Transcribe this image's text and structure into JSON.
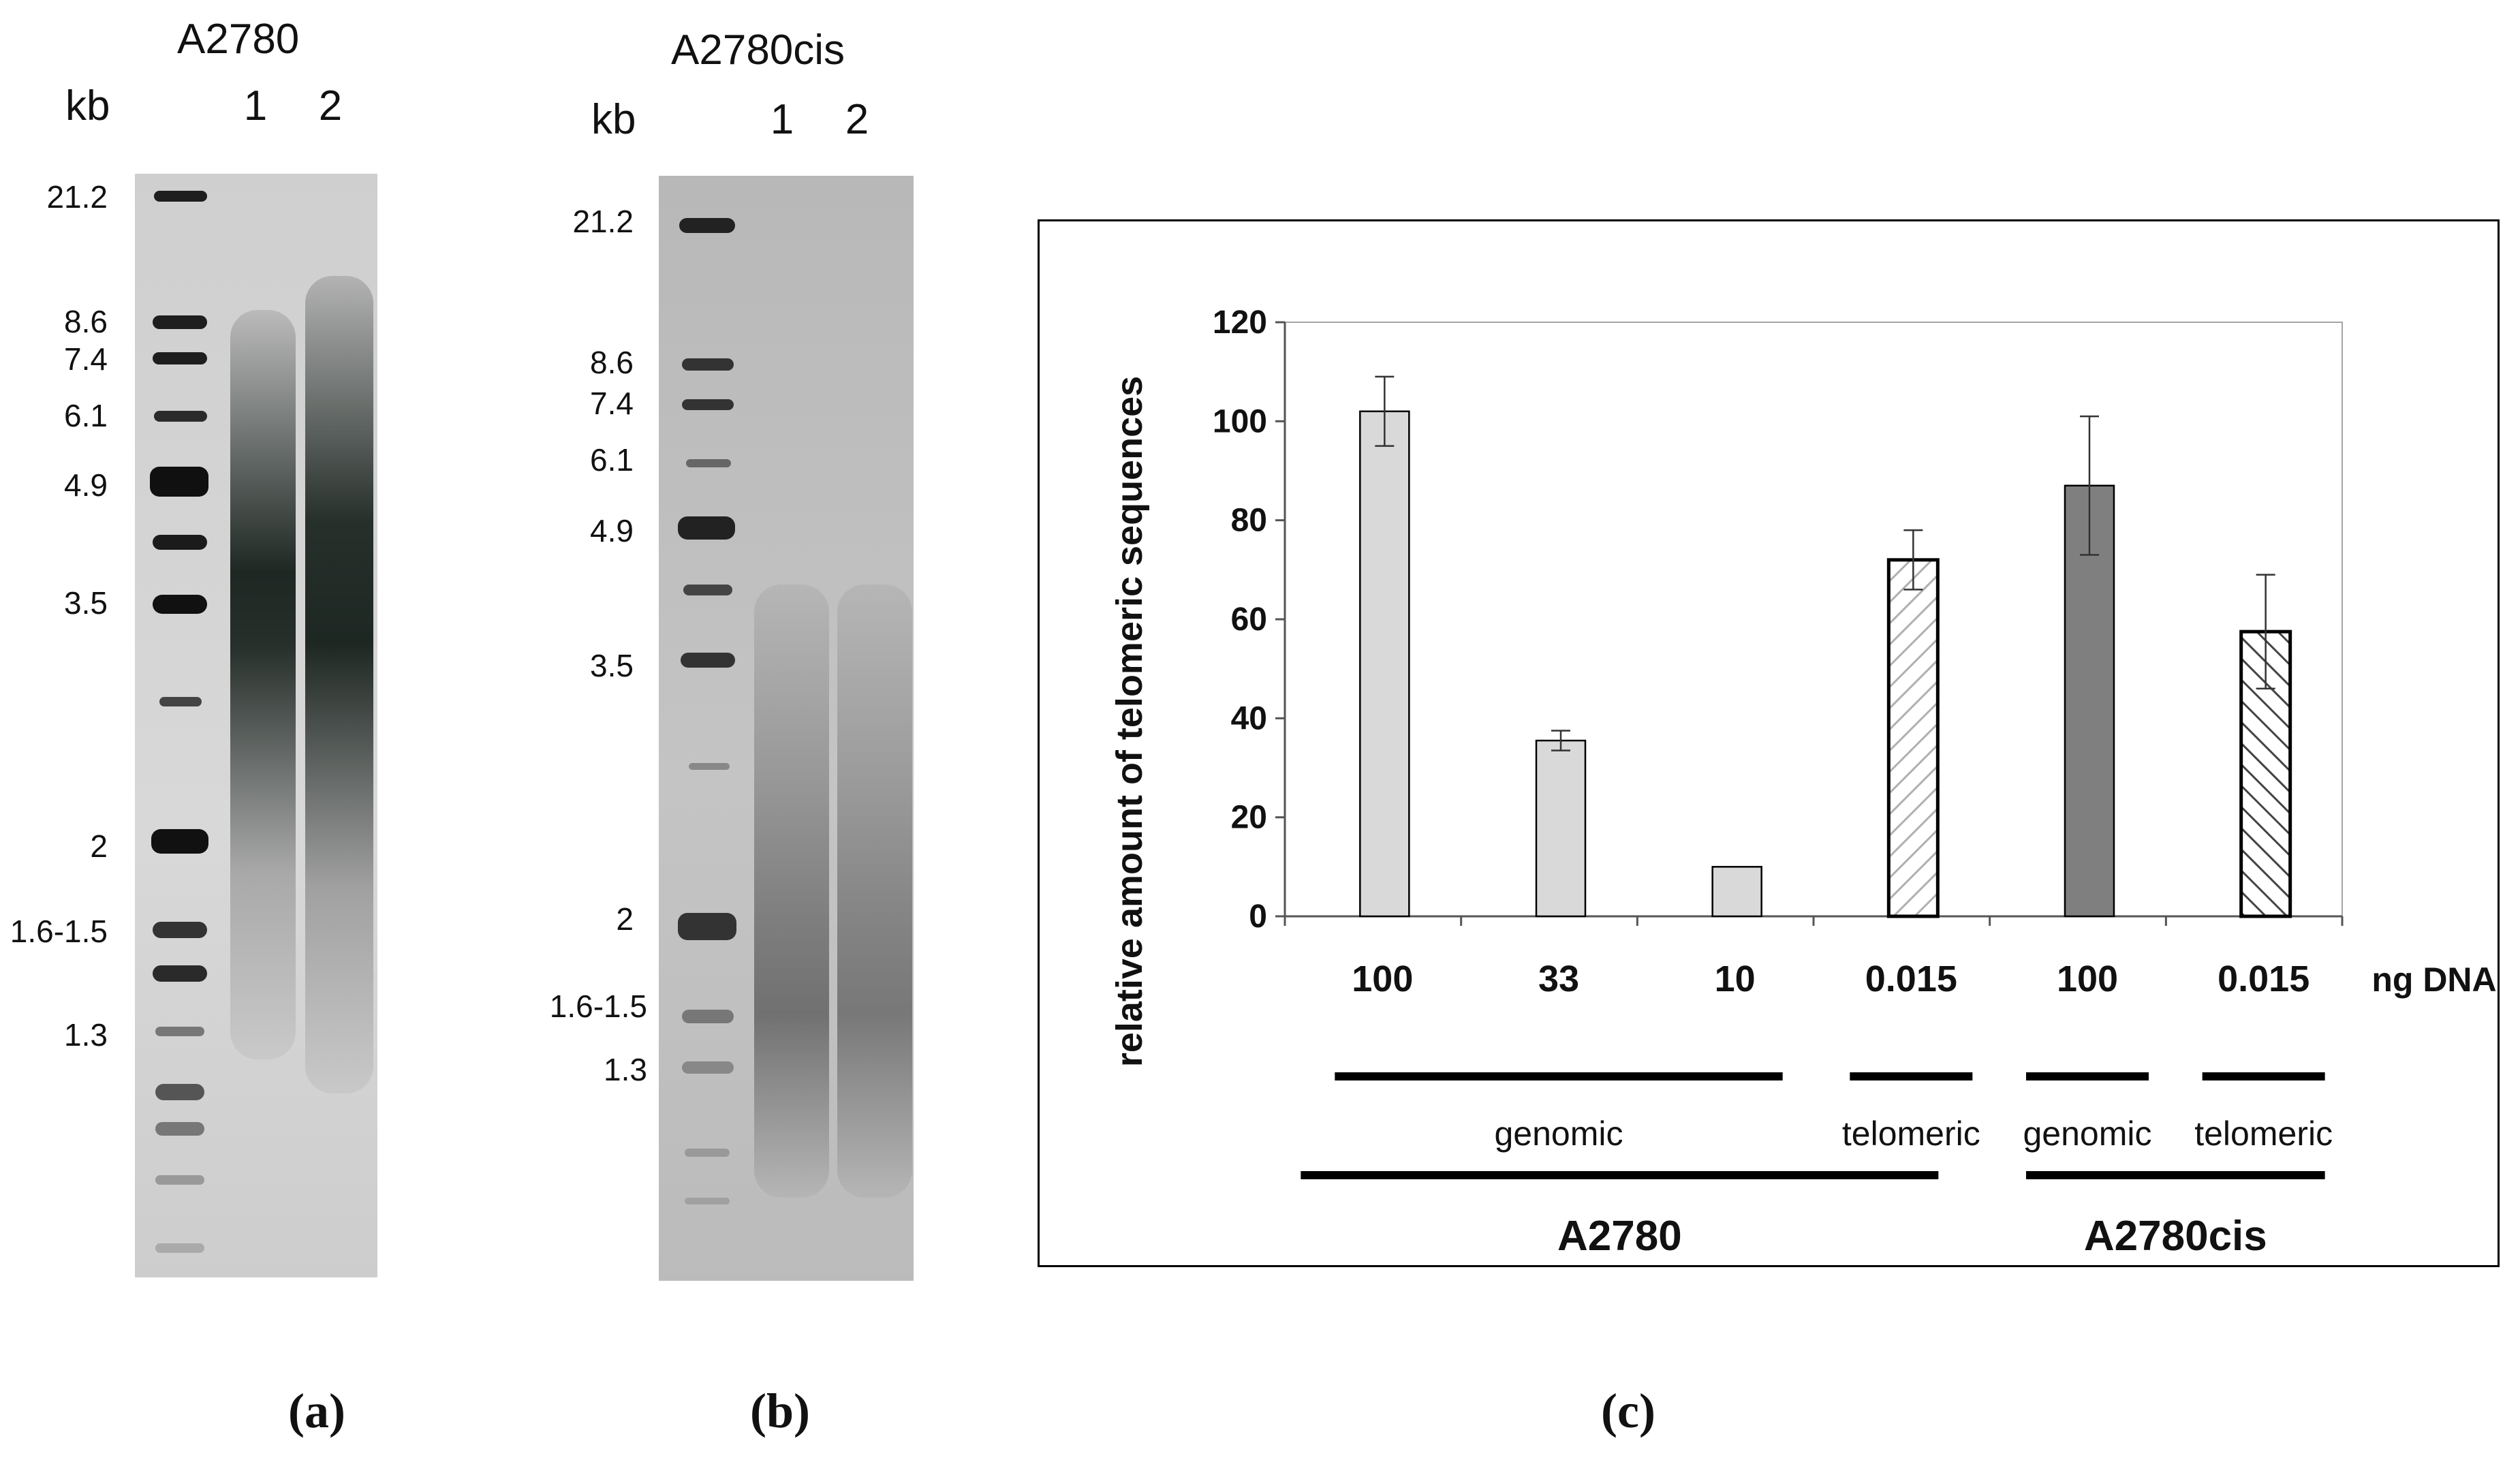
{
  "gels": [
    {
      "title": "A2780",
      "kb_label": "kb",
      "lanes": [
        "1",
        "2"
      ],
      "markers": [
        "21.2",
        "8.6",
        "7.4",
        "6.1",
        "4.9",
        "3.5",
        "2",
        "1.6-1.5",
        "1.3"
      ],
      "caption": "(a)"
    },
    {
      "title": "A2780cis",
      "kb_label": "kb",
      "lanes": [
        "1",
        "2"
      ],
      "markers": [
        "21.2",
        "8.6",
        "7.4",
        "6.1",
        "4.9",
        "3.5",
        "2",
        "1.6-1.5",
        "1.3"
      ],
      "caption": "(b)"
    }
  ],
  "chart_data": {
    "type": "bar",
    "ylabel": "relative amount of telomeric sequences",
    "xlabel": "ng DNA",
    "ylim": [
      0,
      120
    ],
    "yticks": [
      0,
      20,
      40,
      60,
      80,
      100,
      120
    ],
    "grid": false,
    "categories": [
      "100",
      "33",
      "10",
      "0.015",
      "100",
      "0.015"
    ],
    "values": [
      102,
      35.5,
      10,
      72,
      87,
      57.5
    ],
    "errors": [
      7,
      2,
      0,
      6,
      14,
      11.5
    ],
    "bar_styles": [
      "light-gray",
      "light-gray",
      "light-gray",
      "light-hatched",
      "dark-gray",
      "dark-hatched"
    ],
    "group_labels": [
      "genomic",
      "telomeric",
      "genomic",
      "telomeric"
    ],
    "cell_lines": [
      "A2780",
      "A2780cis"
    ],
    "caption": "(c)"
  },
  "colors": {
    "light_bar": "#d9d9d9",
    "dark_bar": "#7f7f7f",
    "bar_outline": "#000000",
    "gel_a": "#d6d6d6",
    "gel_b": "#bdbdbd"
  }
}
